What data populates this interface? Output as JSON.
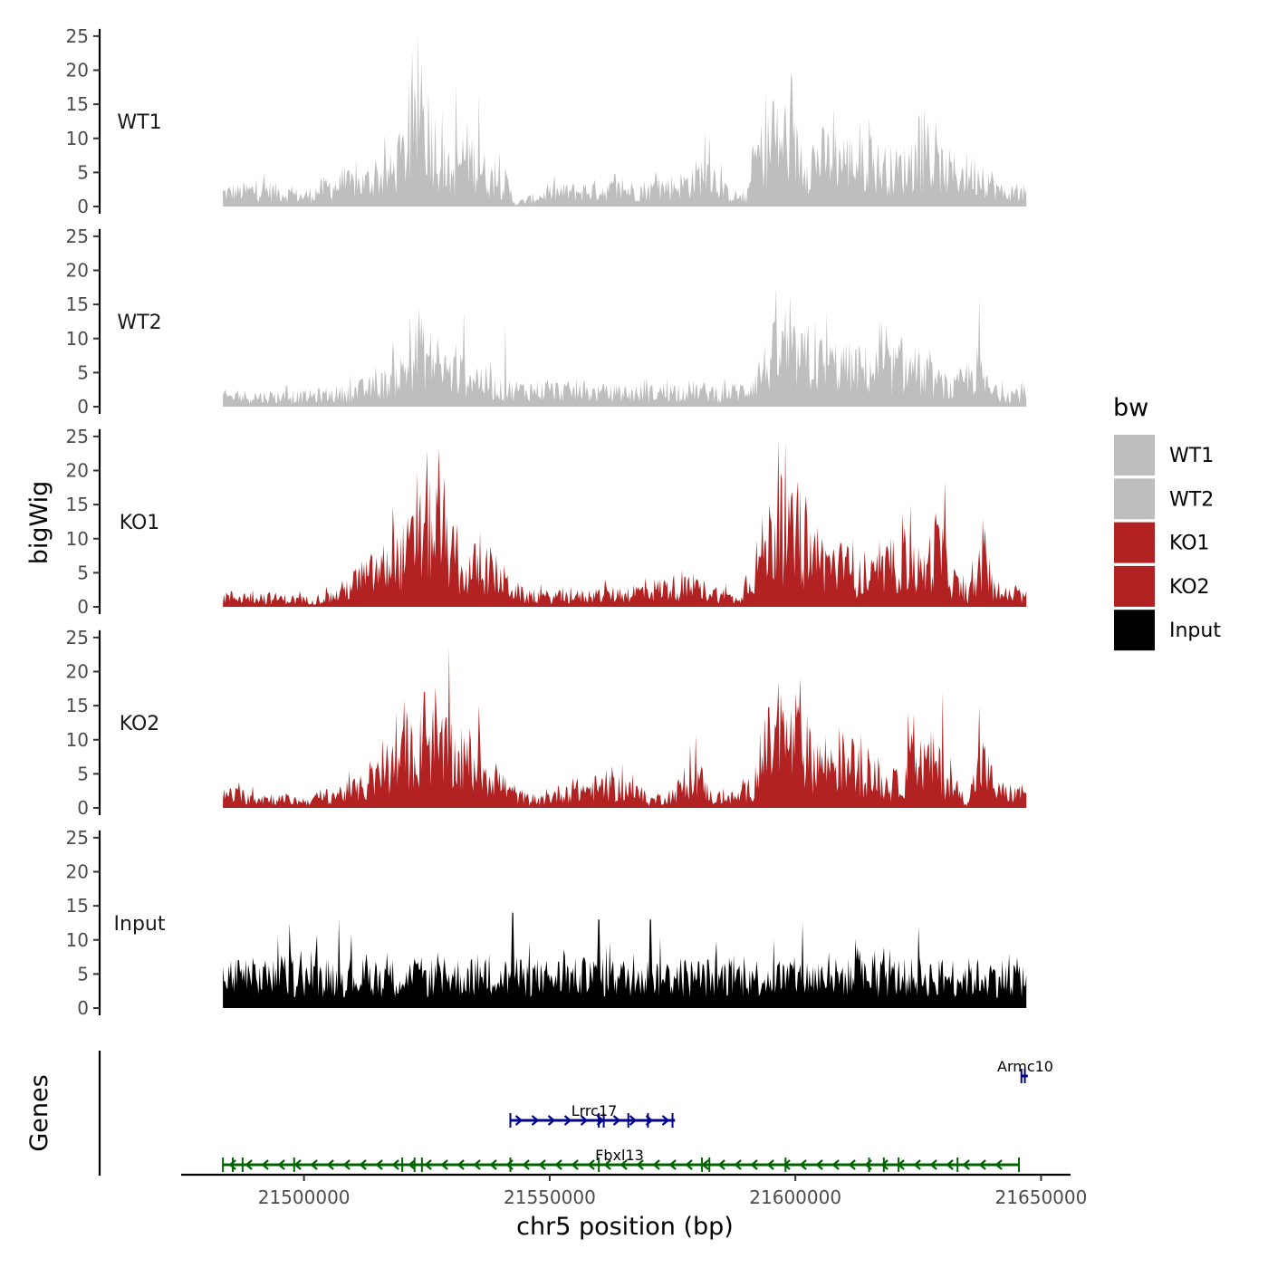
{
  "chart_data": {
    "type": "area",
    "title": "",
    "ylabel": "bigWig",
    "xlabel": "chr5 position (bp)",
    "genes_label": "Genes",
    "xlim": [
      21475000,
      21656000
    ],
    "data_xrange": [
      21483500,
      21647000
    ],
    "ylim": [
      0,
      25
    ],
    "yticks": [
      0,
      5,
      10,
      15,
      20,
      25
    ],
    "xticks": [
      21500000,
      21550000,
      21600000,
      21650000
    ],
    "xtick_labels": [
      "21500000",
      "21550000",
      "21600000",
      "21650000"
    ],
    "tracks": [
      {
        "name": "WT1",
        "color": "#bebebe",
        "profile": [
          {
            "x": 21483500,
            "y": 2.0
          },
          {
            "x": 21492000,
            "y": 2.5
          },
          {
            "x": 21500000,
            "y": 1.5
          },
          {
            "x": 21505000,
            "y": 3.0
          },
          {
            "x": 21512000,
            "y": 3.5
          },
          {
            "x": 21518000,
            "y": 5.0
          },
          {
            "x": 21521000,
            "y": 8.5
          },
          {
            "x": 21524000,
            "y": 13.0
          },
          {
            "x": 21526000,
            "y": 11.0
          },
          {
            "x": 21528000,
            "y": 6.5
          },
          {
            "x": 21530000,
            "y": 4.5
          },
          {
            "x": 21533000,
            "y": 8.0
          },
          {
            "x": 21535000,
            "y": 6.5
          },
          {
            "x": 21538000,
            "y": 4.0
          },
          {
            "x": 21541000,
            "y": 3.5
          },
          {
            "x": 21543000,
            "y": 0.4
          },
          {
            "x": 21550000,
            "y": 2.0
          },
          {
            "x": 21560000,
            "y": 2.5
          },
          {
            "x": 21570000,
            "y": 2.5
          },
          {
            "x": 21578000,
            "y": 3.5
          },
          {
            "x": 21582000,
            "y": 5.5
          },
          {
            "x": 21586000,
            "y": 2.0
          },
          {
            "x": 21590000,
            "y": 1.0
          },
          {
            "x": 21592000,
            "y": 7.5
          },
          {
            "x": 21597000,
            "y": 10.0
          },
          {
            "x": 21602000,
            "y": 7.0
          },
          {
            "x": 21608000,
            "y": 7.5
          },
          {
            "x": 21614000,
            "y": 6.5
          },
          {
            "x": 21620000,
            "y": 5.5
          },
          {
            "x": 21626000,
            "y": 6.5
          },
          {
            "x": 21632000,
            "y": 5.0
          },
          {
            "x": 21638000,
            "y": 5.0
          },
          {
            "x": 21642000,
            "y": 2.0
          },
          {
            "x": 21647000,
            "y": 2.0
          }
        ],
        "peaks": [
          {
            "x": 21524000,
            "y": 21.0
          },
          {
            "x": 21531000,
            "y": 18.0
          },
          {
            "x": 21535500,
            "y": 16.5
          },
          {
            "x": 21582500,
            "y": 10.5
          },
          {
            "x": 21595500,
            "y": 15.5
          },
          {
            "x": 21598000,
            "y": 15.0
          },
          {
            "x": 21615000,
            "y": 13.0
          },
          {
            "x": 21627000,
            "y": 12.5
          }
        ]
      },
      {
        "name": "WT2",
        "color": "#bebebe",
        "profile": [
          {
            "x": 21483500,
            "y": 1.5
          },
          {
            "x": 21492000,
            "y": 1.5
          },
          {
            "x": 21500000,
            "y": 1.5
          },
          {
            "x": 21508000,
            "y": 2.0
          },
          {
            "x": 21515000,
            "y": 3.0
          },
          {
            "x": 21520000,
            "y": 5.0
          },
          {
            "x": 21523000,
            "y": 8.5
          },
          {
            "x": 21526000,
            "y": 7.0
          },
          {
            "x": 21530000,
            "y": 5.0
          },
          {
            "x": 21535000,
            "y": 4.5
          },
          {
            "x": 21540000,
            "y": 2.5
          },
          {
            "x": 21550000,
            "y": 2.5
          },
          {
            "x": 21560000,
            "y": 2.0
          },
          {
            "x": 21570000,
            "y": 2.0
          },
          {
            "x": 21578000,
            "y": 2.5
          },
          {
            "x": 21585000,
            "y": 2.0
          },
          {
            "x": 21590000,
            "y": 2.5
          },
          {
            "x": 21596000,
            "y": 8.0
          },
          {
            "x": 21602000,
            "y": 7.0
          },
          {
            "x": 21610000,
            "y": 6.0
          },
          {
            "x": 21616000,
            "y": 5.5
          },
          {
            "x": 21622000,
            "y": 6.0
          },
          {
            "x": 21628000,
            "y": 4.0
          },
          {
            "x": 21632000,
            "y": 2.5
          },
          {
            "x": 21637000,
            "y": 5.5
          },
          {
            "x": 21640000,
            "y": 2.0
          },
          {
            "x": 21647000,
            "y": 2.0
          }
        ],
        "peaks": [
          {
            "x": 21523500,
            "y": 14.5
          },
          {
            "x": 21532500,
            "y": 14.0
          },
          {
            "x": 21541000,
            "y": 12.0
          },
          {
            "x": 21598000,
            "y": 14.5
          },
          {
            "x": 21604000,
            "y": 13.0
          },
          {
            "x": 21617500,
            "y": 12.5
          },
          {
            "x": 21637500,
            "y": 16.0
          }
        ]
      },
      {
        "name": "KO1",
        "color": "#b22222",
        "profile": [
          {
            "x": 21483500,
            "y": 1.5
          },
          {
            "x": 21490000,
            "y": 1.5
          },
          {
            "x": 21500000,
            "y": 1.0
          },
          {
            "x": 21506000,
            "y": 1.5
          },
          {
            "x": 21510000,
            "y": 3.5
          },
          {
            "x": 21514000,
            "y": 5.0
          },
          {
            "x": 21518000,
            "y": 6.5
          },
          {
            "x": 21521000,
            "y": 8.0
          },
          {
            "x": 21524000,
            "y": 11.0
          },
          {
            "x": 21527000,
            "y": 12.0
          },
          {
            "x": 21530000,
            "y": 8.0
          },
          {
            "x": 21532000,
            "y": 4.5
          },
          {
            "x": 21535000,
            "y": 6.0
          },
          {
            "x": 21538000,
            "y": 5.5
          },
          {
            "x": 21542000,
            "y": 3.0
          },
          {
            "x": 21545000,
            "y": 1.5
          },
          {
            "x": 21555000,
            "y": 1.5
          },
          {
            "x": 21565000,
            "y": 2.0
          },
          {
            "x": 21575000,
            "y": 3.0
          },
          {
            "x": 21582000,
            "y": 2.5
          },
          {
            "x": 21588000,
            "y": 1.0
          },
          {
            "x": 21591000,
            "y": 5.0
          },
          {
            "x": 21596000,
            "y": 12.0
          },
          {
            "x": 21600000,
            "y": 10.0
          },
          {
            "x": 21605000,
            "y": 7.0
          },
          {
            "x": 21610000,
            "y": 6.0
          },
          {
            "x": 21614000,
            "y": 4.0
          },
          {
            "x": 21618000,
            "y": 5.0
          },
          {
            "x": 21622000,
            "y": 7.5
          },
          {
            "x": 21626000,
            "y": 5.0
          },
          {
            "x": 21629000,
            "y": 9.5
          },
          {
            "x": 21632000,
            "y": 4.0
          },
          {
            "x": 21635000,
            "y": 1.5
          },
          {
            "x": 21638000,
            "y": 6.0
          },
          {
            "x": 21641000,
            "y": 2.0
          },
          {
            "x": 21647000,
            "y": 1.5
          }
        ],
        "peaks": [
          {
            "x": 21525000,
            "y": 23.0
          },
          {
            "x": 21528500,
            "y": 19.0
          },
          {
            "x": 21596500,
            "y": 24.5
          },
          {
            "x": 21600500,
            "y": 18.5
          },
          {
            "x": 21623500,
            "y": 15.0
          },
          {
            "x": 21630500,
            "y": 18.5
          },
          {
            "x": 21638500,
            "y": 11.5
          }
        ]
      },
      {
        "name": "KO2",
        "color": "#b22222",
        "profile": [
          {
            "x": 21483500,
            "y": 2.0
          },
          {
            "x": 21492000,
            "y": 1.5
          },
          {
            "x": 21500000,
            "y": 1.0
          },
          {
            "x": 21506000,
            "y": 2.0
          },
          {
            "x": 21512000,
            "y": 3.0
          },
          {
            "x": 21518000,
            "y": 6.0
          },
          {
            "x": 21522000,
            "y": 8.5
          },
          {
            "x": 21526000,
            "y": 10.0
          },
          {
            "x": 21529000,
            "y": 8.0
          },
          {
            "x": 21532000,
            "y": 6.5
          },
          {
            "x": 21535000,
            "y": 7.0
          },
          {
            "x": 21538000,
            "y": 5.0
          },
          {
            "x": 21542000,
            "y": 2.5
          },
          {
            "x": 21547000,
            "y": 0.8
          },
          {
            "x": 21553000,
            "y": 2.5
          },
          {
            "x": 21560000,
            "y": 3.0
          },
          {
            "x": 21566000,
            "y": 3.0
          },
          {
            "x": 21570000,
            "y": 1.0
          },
          {
            "x": 21575000,
            "y": 2.0
          },
          {
            "x": 21580000,
            "y": 5.0
          },
          {
            "x": 21583000,
            "y": 1.5
          },
          {
            "x": 21588000,
            "y": 1.5
          },
          {
            "x": 21591000,
            "y": 3.0
          },
          {
            "x": 21595000,
            "y": 10.0
          },
          {
            "x": 21600000,
            "y": 10.0
          },
          {
            "x": 21605000,
            "y": 7.0
          },
          {
            "x": 21610000,
            "y": 7.0
          },
          {
            "x": 21615000,
            "y": 5.0
          },
          {
            "x": 21620000,
            "y": 3.0
          },
          {
            "x": 21624000,
            "y": 6.5
          },
          {
            "x": 21628000,
            "y": 7.0
          },
          {
            "x": 21632000,
            "y": 3.0
          },
          {
            "x": 21635000,
            "y": 1.0
          },
          {
            "x": 21638000,
            "y": 7.0
          },
          {
            "x": 21641000,
            "y": 2.5
          },
          {
            "x": 21647000,
            "y": 2.0
          }
        ],
        "peaks": [
          {
            "x": 21524500,
            "y": 17.0
          },
          {
            "x": 21529500,
            "y": 23.5
          },
          {
            "x": 21596500,
            "y": 18.5
          },
          {
            "x": 21600000,
            "y": 17.0
          },
          {
            "x": 21623000,
            "y": 14.0
          },
          {
            "x": 21630000,
            "y": 17.0
          },
          {
            "x": 21637500,
            "y": 15.0
          }
        ]
      },
      {
        "name": "Input",
        "color": "#000000",
        "profile": [
          {
            "x": 21483500,
            "y": 5.0
          },
          {
            "x": 21520000,
            "y": 5.0
          },
          {
            "x": 21560000,
            "y": 5.0
          },
          {
            "x": 21600000,
            "y": 5.0
          },
          {
            "x": 21647000,
            "y": 5.0
          }
        ],
        "peaks": [
          {
            "x": 21497000,
            "y": 12.5
          },
          {
            "x": 21507000,
            "y": 13.0
          },
          {
            "x": 21542500,
            "y": 14.0
          },
          {
            "x": 21560000,
            "y": 13.0
          },
          {
            "x": 21570500,
            "y": 13.0
          },
          {
            "x": 21601500,
            "y": 12.5
          },
          {
            "x": 21625000,
            "y": 12.0
          }
        ]
      }
    ],
    "legend": {
      "title": "bw",
      "position": "right",
      "entries": [
        {
          "label": "WT1",
          "color": "#bebebe"
        },
        {
          "label": "WT2",
          "color": "#bebebe"
        },
        {
          "label": "KO1",
          "color": "#b22222"
        },
        {
          "label": "KO2",
          "color": "#b22222"
        },
        {
          "label": "Input",
          "color": "#000000"
        }
      ]
    },
    "genes": [
      {
        "name": "Armc10",
        "start": 21646000,
        "end": 21647300,
        "strand": "+",
        "color": "#00008b",
        "row": 0,
        "exons": [
          21646000,
          21646700
        ]
      },
      {
        "name": "Lrrc17",
        "start": 21542000,
        "end": 21575500,
        "strand": "+",
        "color": "#00008b",
        "row": 1,
        "exons": [
          21542000,
          21560000,
          21561000,
          21566000,
          21570000,
          21575000
        ]
      },
      {
        "name": "Fbxl13",
        "start": 21483500,
        "end": 21645500,
        "strand": "-",
        "color": "#006400",
        "row": 2,
        "exons": [
          21483500,
          21485500,
          21487500,
          21498000,
          21520000,
          21522500,
          21524000,
          21542000,
          21560000,
          21581000,
          21582500,
          21598000,
          21615000,
          21618000,
          21621000,
          21633000,
          21645500
        ]
      }
    ]
  }
}
